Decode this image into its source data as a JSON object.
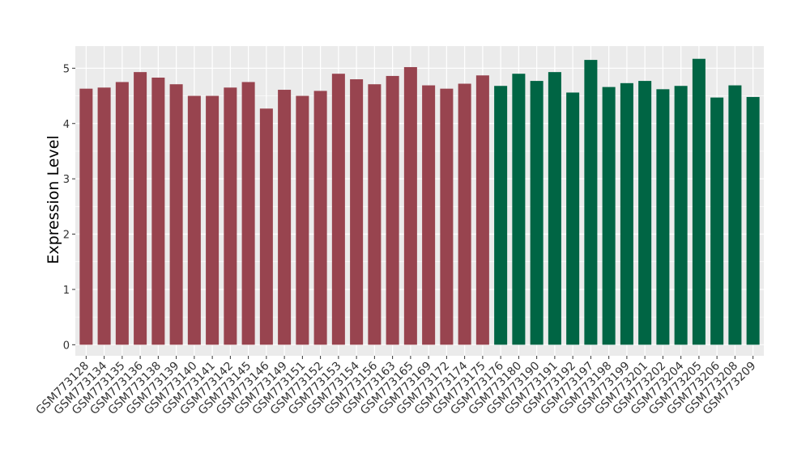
{
  "chart_data": {
    "type": "bar",
    "title": "",
    "xlabel": "",
    "ylabel": "Expression Level",
    "ylim": [
      -0.2,
      5.4
    ],
    "yticks": [
      0,
      1,
      2,
      3,
      4,
      5
    ],
    "grid": true,
    "legend": "none",
    "categories": [
      "GSM773128",
      "GSM773134",
      "GSM773135",
      "GSM773136",
      "GSM773138",
      "GSM773139",
      "GSM773140",
      "GSM773141",
      "GSM773142",
      "GSM773145",
      "GSM773146",
      "GSM773149",
      "GSM773151",
      "GSM773152",
      "GSM773153",
      "GSM773154",
      "GSM773156",
      "GSM773163",
      "GSM773165",
      "GSM773169",
      "GSM773172",
      "GSM773174",
      "GSM773175",
      "GSM773176",
      "GSM773180",
      "GSM773190",
      "GSM773191",
      "GSM773192",
      "GSM773197",
      "GSM773198",
      "GSM773199",
      "GSM773201",
      "GSM773202",
      "GSM773204",
      "GSM773205",
      "GSM773206",
      "GSM773208",
      "GSM773209"
    ],
    "values": [
      4.63,
      4.65,
      4.75,
      4.93,
      4.83,
      4.71,
      4.5,
      4.5,
      4.65,
      4.75,
      4.27,
      4.61,
      4.5,
      4.59,
      4.9,
      4.8,
      4.71,
      4.86,
      5.02,
      4.69,
      4.63,
      4.72,
      4.87,
      4.68,
      4.9,
      4.77,
      4.93,
      4.56,
      5.15,
      4.66,
      4.73,
      4.77,
      4.62,
      4.68,
      5.17,
      4.47,
      4.69,
      4.48
    ],
    "groups": [
      0,
      0,
      0,
      0,
      0,
      0,
      0,
      0,
      0,
      0,
      0,
      0,
      0,
      0,
      0,
      0,
      0,
      0,
      0,
      0,
      0,
      0,
      0,
      1,
      1,
      1,
      1,
      1,
      1,
      1,
      1,
      1,
      1,
      1,
      1,
      1,
      1,
      1
    ],
    "colors": [
      "#98444f",
      "#006544"
    ],
    "panel_background": "#ebebeb",
    "grid_color": "#ffffff"
  }
}
